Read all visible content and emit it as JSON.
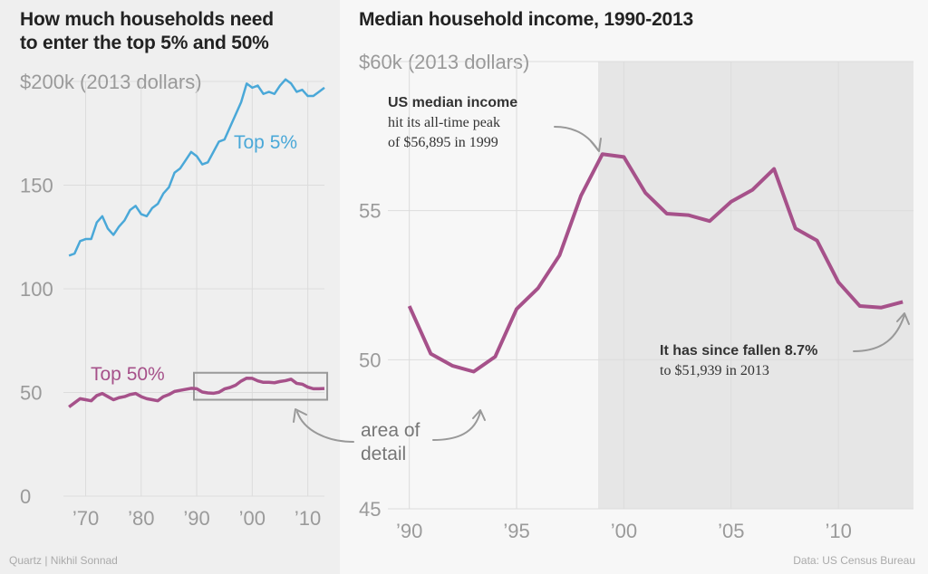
{
  "left": {
    "title_line1": "How much households need",
    "title_line2": "to enter the top 5% and 50%"
  },
  "right": {
    "title": "Median household income, 1990-2013"
  },
  "annotations": {
    "peak_bold": "US median income",
    "peak_line2": "hit its all-time peak",
    "peak_line3": "of $56,895 in 1999",
    "fall_bold": "It has since fallen 8.7%",
    "fall_line2": "to $51,939 in 2013",
    "detail_line1": "area of",
    "detail_line2": "detail"
  },
  "footer": {
    "credit": "Quartz | Nikhil Sonnad",
    "source": "Data: US Census Bureau"
  },
  "colors": {
    "top5": "#4aa8d8",
    "top50": "#a6518a",
    "shade": "#e6e6e6",
    "grid": "#dcdcdc",
    "tick": "#9a9a9a"
  },
  "chart_data": [
    {
      "type": "line",
      "title": "How much households need to enter the top 5% and 50%",
      "ylabel": "$200k (2013 dollars)",
      "ylim": [
        0,
        200
      ],
      "yticks": [
        0,
        50,
        100,
        150,
        200
      ],
      "ytick_labels": [
        "0",
        "50",
        "100",
        "150",
        "$200k (2013 dollars)"
      ],
      "xlim": [
        1966,
        2013
      ],
      "xticks": [
        1970,
        1980,
        1990,
        2000,
        2010
      ],
      "xtick_labels": [
        "’70",
        "’80",
        "’90",
        "’00",
        "’10"
      ],
      "grid": true,
      "series": [
        {
          "name": "Top 5%",
          "x": [
            1967,
            1968,
            1969,
            1970,
            1971,
            1972,
            1973,
            1974,
            1975,
            1976,
            1977,
            1978,
            1979,
            1980,
            1981,
            1982,
            1983,
            1984,
            1985,
            1986,
            1987,
            1988,
            1989,
            1990,
            1991,
            1992,
            1993,
            1994,
            1995,
            1996,
            1997,
            1998,
            1999,
            2000,
            2001,
            2002,
            2003,
            2004,
            2005,
            2006,
            2007,
            2008,
            2009,
            2010,
            2011,
            2012,
            2013
          ],
          "values": [
            116,
            117,
            123,
            124,
            124,
            132,
            135,
            129,
            126,
            130,
            133,
            138,
            140,
            136,
            135,
            139,
            141,
            146,
            149,
            156,
            158,
            162,
            166,
            164,
            160,
            161,
            166,
            171,
            172,
            178,
            184,
            190,
            199,
            197,
            198,
            194,
            195,
            194,
            198,
            201,
            199,
            195,
            196,
            193,
            193,
            195,
            197
          ]
        },
        {
          "name": "Top 50%",
          "x": [
            1967,
            1968,
            1969,
            1970,
            1971,
            1972,
            1973,
            1974,
            1975,
            1976,
            1977,
            1978,
            1979,
            1980,
            1981,
            1982,
            1983,
            1984,
            1985,
            1986,
            1987,
            1988,
            1989,
            1990,
            1991,
            1992,
            1993,
            1994,
            1995,
            1996,
            1997,
            1998,
            1999,
            2000,
            2001,
            2002,
            2003,
            2004,
            2005,
            2006,
            2007,
            2008,
            2009,
            2010,
            2011,
            2012,
            2013
          ],
          "values": [
            43,
            45,
            47,
            46.5,
            46,
            48.5,
            49.5,
            48,
            46.5,
            47.5,
            48,
            49,
            49.5,
            48,
            47,
            46.5,
            46,
            48,
            49,
            50.5,
            51,
            51.5,
            52,
            51.8,
            50.2,
            49.8,
            49.6,
            50.1,
            51.7,
            52.4,
            53.5,
            55.5,
            56.9,
            56.8,
            55.6,
            54.9,
            54.9,
            54.7,
            55.3,
            55.7,
            56.4,
            54.4,
            54,
            52.6,
            51.8,
            51.8,
            51.9
          ]
        }
      ],
      "detail_box": {
        "x_range": [
          1989.5,
          2013.5
        ],
        "y_range": [
          46.5,
          59.5
        ]
      }
    },
    {
      "type": "line",
      "title": "Median household income, 1990-2013",
      "ylabel": "$60k (2013 dollars)",
      "ylim": [
        45,
        60
      ],
      "yticks": [
        45,
        50,
        55,
        60
      ],
      "ytick_labels": [
        "45",
        "50",
        "55",
        "$60k (2013 dollars)"
      ],
      "xlim": [
        1989,
        2013.5
      ],
      "xticks": [
        1990,
        1995,
        2000,
        2005,
        2010
      ],
      "xtick_labels": [
        "’90",
        "’95",
        "’00",
        "’05",
        "’10"
      ],
      "grid": true,
      "shaded_x_range": [
        1998.8,
        2013.5
      ],
      "series": [
        {
          "name": "",
          "x": [
            1990,
            1991,
            1992,
            1993,
            1994,
            1995,
            1996,
            1997,
            1998,
            1999,
            2000,
            2001,
            2002,
            2003,
            2004,
            2005,
            2006,
            2007,
            2008,
            2009,
            2010,
            2011,
            2012,
            2013
          ],
          "values": [
            51.8,
            50.2,
            49.8,
            49.6,
            50.1,
            51.7,
            52.4,
            53.5,
            55.5,
            56.895,
            56.8,
            55.6,
            54.9,
            54.85,
            54.65,
            55.3,
            55.7,
            56.4,
            54.4,
            54.0,
            52.6,
            51.8,
            51.75,
            51.939
          ]
        }
      ]
    }
  ]
}
